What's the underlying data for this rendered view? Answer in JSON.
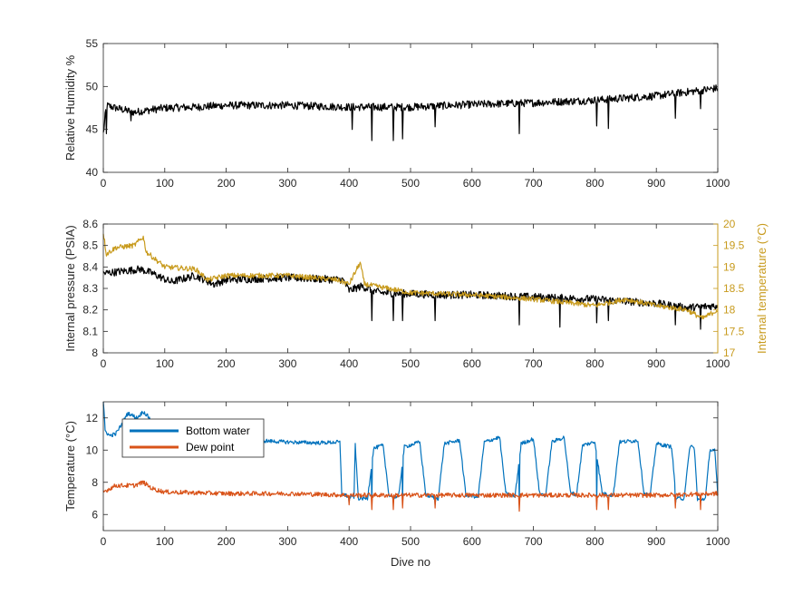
{
  "chart_data": [
    {
      "type": "line",
      "ylabel": "Relative Humidity %",
      "xlim": [
        0,
        1000
      ],
      "ylim": [
        40,
        55
      ],
      "xticks": [
        "0",
        "100",
        "200",
        "300",
        "400",
        "500",
        "600",
        "700",
        "800",
        "900",
        "1000"
      ],
      "yticks": [
        "40",
        "45",
        "50",
        "55"
      ],
      "series": [
        {
          "color": "#000000",
          "base": [
            [
              0,
              44.5
            ],
            [
              5,
              47.8
            ],
            [
              20,
              47.5
            ],
            [
              50,
              47.0
            ],
            [
              100,
              47.5
            ],
            [
              150,
              47.6
            ],
            [
              200,
              47.8
            ],
            [
              300,
              47.8
            ],
            [
              400,
              47.6
            ],
            [
              500,
              47.6
            ],
            [
              600,
              47.9
            ],
            [
              700,
              48.1
            ],
            [
              800,
              48.4
            ],
            [
              900,
              48.9
            ],
            [
              1000,
              49.8
            ]
          ],
          "noise": 0.45,
          "spikes": [
            [
              5,
              44.5
            ],
            [
              45,
              46.0
            ],
            [
              405,
              45.0
            ],
            [
              437,
              43.7
            ],
            [
              472,
              43.7
            ],
            [
              487,
              43.9
            ],
            [
              540,
              45.3
            ],
            [
              677,
              44.5
            ],
            [
              803,
              45.4
            ],
            [
              822,
              45.1
            ],
            [
              931,
              46.3
            ],
            [
              972,
              47.4
            ]
          ]
        }
      ]
    },
    {
      "type": "line",
      "ylabel": "Internal pressure (PSIA)",
      "y2label": "Internal temperature (°C)",
      "xlim": [
        0,
        1000
      ],
      "ylim": [
        8,
        8.6
      ],
      "y2lim": [
        17,
        20
      ],
      "xticks": [
        "0",
        "100",
        "200",
        "300",
        "400",
        "500",
        "600",
        "700",
        "800",
        "900",
        "1000"
      ],
      "yticks": [
        "8",
        "8.1",
        "8.2",
        "8.3",
        "8.4",
        "8.5",
        "8.6"
      ],
      "y2ticks": [
        "17",
        "17.5",
        "18",
        "18.5",
        "19",
        "19.5",
        "20"
      ],
      "series": [
        {
          "axis": "left",
          "color": "#000000",
          "base": [
            [
              0,
              8.37
            ],
            [
              60,
              8.39
            ],
            [
              80,
              8.37
            ],
            [
              110,
              8.33
            ],
            [
              150,
              8.36
            ],
            [
              180,
              8.32
            ],
            [
              200,
              8.34
            ],
            [
              300,
              8.35
            ],
            [
              390,
              8.34
            ],
            [
              400,
              8.29
            ],
            [
              420,
              8.31
            ],
            [
              450,
              8.28
            ],
            [
              550,
              8.27
            ],
            [
              600,
              8.27
            ],
            [
              700,
              8.26
            ],
            [
              800,
              8.25
            ],
            [
              900,
              8.23
            ],
            [
              950,
              8.21
            ],
            [
              1000,
              8.22
            ]
          ],
          "noise": 0.018,
          "spikes": [
            [
              437,
              8.15
            ],
            [
              472,
              8.15
            ],
            [
              487,
              8.15
            ],
            [
              540,
              8.15
            ],
            [
              677,
              8.13
            ],
            [
              743,
              8.12
            ],
            [
              803,
              8.14
            ],
            [
              822,
              8.15
            ],
            [
              931,
              8.13
            ],
            [
              972,
              8.11
            ]
          ]
        },
        {
          "axis": "right",
          "color": "#C89B1E",
          "base": [
            [
              0,
              19.8
            ],
            [
              5,
              19.3
            ],
            [
              20,
              19.45
            ],
            [
              50,
              19.5
            ],
            [
              65,
              19.7
            ],
            [
              70,
              19.35
            ],
            [
              100,
              19.0
            ],
            [
              150,
              18.95
            ],
            [
              170,
              18.7
            ],
            [
              200,
              18.8
            ],
            [
              300,
              18.8
            ],
            [
              380,
              18.7
            ],
            [
              400,
              18.6
            ],
            [
              418,
              19.1
            ],
            [
              425,
              18.6
            ],
            [
              500,
              18.4
            ],
            [
              600,
              18.35
            ],
            [
              700,
              18.25
            ],
            [
              800,
              18.1
            ],
            [
              850,
              18.25
            ],
            [
              900,
              18.1
            ],
            [
              950,
              18.0
            ],
            [
              975,
              17.8
            ],
            [
              1000,
              18.0
            ]
          ],
          "noise": 0.06,
          "spikes": []
        }
      ]
    },
    {
      "type": "line",
      "ylabel": "Temperature (°C)",
      "xlabel": "Dive no",
      "xlim": [
        0,
        1000
      ],
      "ylim": [
        5,
        13
      ],
      "xticks": [
        "0",
        "100",
        "200",
        "300",
        "400",
        "500",
        "600",
        "700",
        "800",
        "900",
        "1000"
      ],
      "yticks": [
        "6",
        "8",
        "10",
        "12"
      ],
      "legend_position": "top-left",
      "series": [
        {
          "name": "Bottom water",
          "color": "#0072BD",
          "base": [
            [
              0,
              13
            ],
            [
              3,
              11.2
            ],
            [
              10,
              10.9
            ],
            [
              20,
              11.0
            ],
            [
              30,
              11.6
            ],
            [
              40,
              12.3
            ],
            [
              55,
              12.0
            ],
            [
              65,
              12.4
            ],
            [
              80,
              11.8
            ],
            [
              100,
              11.5
            ],
            [
              150,
              11.1
            ],
            [
              200,
              10.8
            ],
            [
              250,
              10.6
            ],
            [
              300,
              10.5
            ],
            [
              350,
              10.45
            ],
            [
              385,
              10.5
            ],
            [
              388,
              7.3
            ],
            [
              400,
              7.1
            ],
            [
              408,
              7.1
            ],
            [
              410,
              10.3
            ],
            [
              415,
              7.0
            ],
            [
              430,
              7.0
            ],
            [
              440,
              10.1
            ],
            [
              455,
              10.3
            ],
            [
              465,
              7.2
            ],
            [
              480,
              7.0
            ],
            [
              490,
              10.2
            ],
            [
              515,
              10.5
            ],
            [
              525,
              7.2
            ],
            [
              545,
              7.0
            ],
            [
              555,
              10.4
            ],
            [
              580,
              10.6
            ],
            [
              590,
              7.2
            ],
            [
              610,
              7.1
            ],
            [
              620,
              10.5
            ],
            [
              645,
              10.8
            ],
            [
              655,
              7.3
            ],
            [
              670,
              7.1
            ],
            [
              680,
              10.4
            ],
            [
              700,
              10.7
            ],
            [
              710,
              7.3
            ],
            [
              720,
              7.2
            ],
            [
              730,
              10.5
            ],
            [
              750,
              10.8
            ],
            [
              760,
              7.4
            ],
            [
              770,
              7.2
            ],
            [
              780,
              10.3
            ],
            [
              800,
              10.5
            ],
            [
              812,
              7.3
            ],
            [
              830,
              7.2
            ],
            [
              840,
              10.5
            ],
            [
              870,
              10.6
            ],
            [
              880,
              7.3
            ],
            [
              890,
              7.2
            ],
            [
              900,
              10.4
            ],
            [
              925,
              10.2
            ],
            [
              932,
              7.0
            ],
            [
              945,
              7.0
            ],
            [
              955,
              10.3
            ],
            [
              962,
              10.1
            ],
            [
              967,
              6.9
            ],
            [
              980,
              7.0
            ],
            [
              987,
              10.0
            ],
            [
              995,
              10.0
            ],
            [
              1000,
              7.2
            ]
          ],
          "noise": 0.12,
          "spikes": [
            [
              400,
              6.7
            ],
            [
              437,
              6.6
            ],
            [
              472,
              6.8
            ],
            [
              487,
              6.7
            ],
            [
              540,
              6.6
            ],
            [
              677,
              6.6
            ],
            [
              803,
              6.5
            ],
            [
              931,
              6.6
            ],
            [
              972,
              6.8
            ]
          ]
        },
        {
          "name": "Dew point",
          "color": "#D95319",
          "base": [
            [
              0,
              7.4
            ],
            [
              20,
              7.8
            ],
            [
              50,
              7.8
            ],
            [
              65,
              8.0
            ],
            [
              80,
              7.6
            ],
            [
              100,
              7.4
            ],
            [
              200,
              7.3
            ],
            [
              300,
              7.3
            ],
            [
              400,
              7.2
            ],
            [
              500,
              7.2
            ],
            [
              600,
              7.2
            ],
            [
              700,
              7.2
            ],
            [
              800,
              7.2
            ],
            [
              900,
              7.2
            ],
            [
              1000,
              7.3
            ]
          ],
          "noise": 0.14,
          "spikes": [
            [
              400,
              6.6
            ],
            [
              437,
              6.3
            ],
            [
              472,
              6.3
            ],
            [
              487,
              6.4
            ],
            [
              540,
              6.4
            ],
            [
              677,
              6.2
            ],
            [
              803,
              6.3
            ],
            [
              822,
              6.3
            ],
            [
              931,
              6.4
            ],
            [
              972,
              6.3
            ]
          ]
        }
      ]
    }
  ]
}
